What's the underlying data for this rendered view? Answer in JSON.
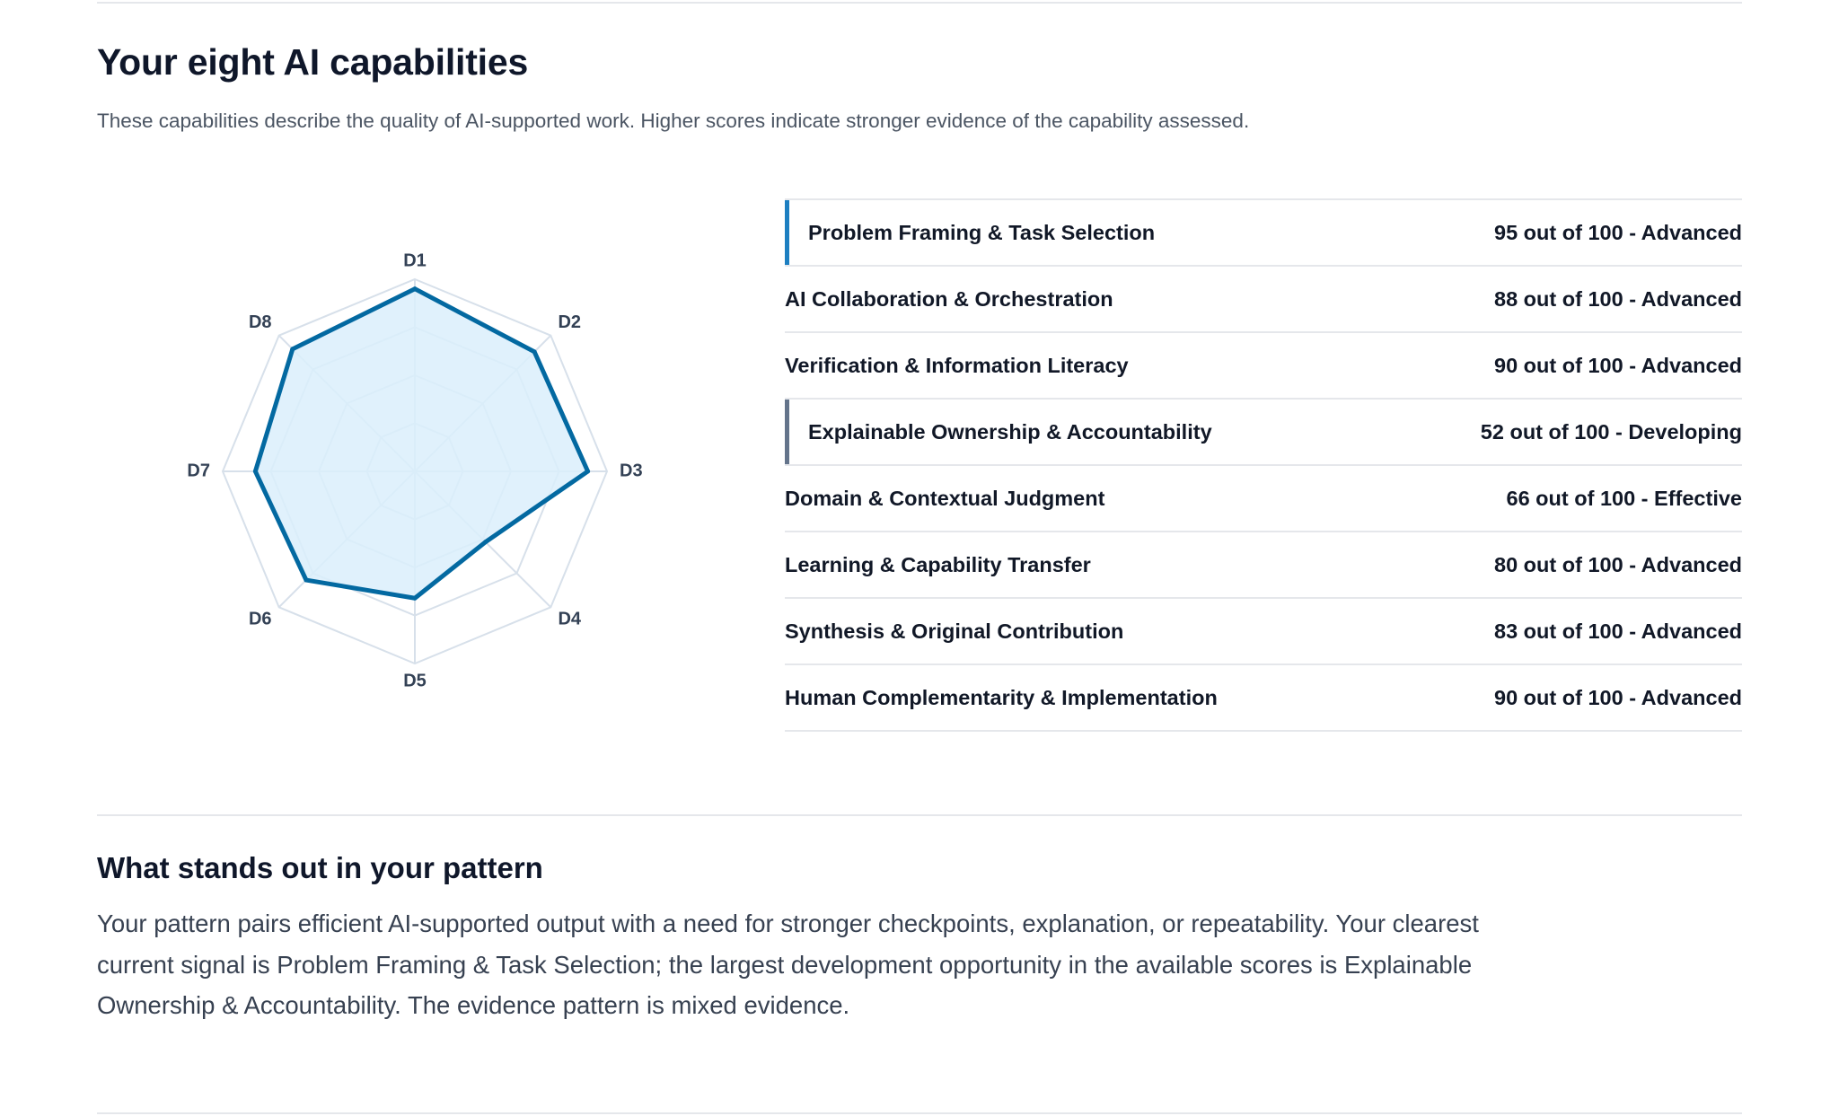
{
  "capabilities_section": {
    "title": "Your eight AI capabilities",
    "description": "These capabilities describe the quality of AI-supported work. Higher scores indicate stronger evidence of the capability assessed."
  },
  "chart_data": {
    "type": "radar",
    "axes": [
      "D1",
      "D2",
      "D3",
      "D4",
      "D5",
      "D6",
      "D7",
      "D8"
    ],
    "values": [
      95,
      88,
      90,
      52,
      66,
      80,
      83,
      90
    ],
    "range": [
      0,
      100
    ],
    "rings": 4,
    "colors": {
      "stroke": "#0369a1",
      "fill": "#dbeefb",
      "grid": "#d7e0ea"
    }
  },
  "score_table": {
    "rows": [
      {
        "label": "Problem Framing & Task Selection",
        "value": "95 out of 100 - Advanced",
        "accent": "#1d7fc1"
      },
      {
        "label": "AI Collaboration & Orchestration",
        "value": "88 out of 100 - Advanced",
        "accent": ""
      },
      {
        "label": "Verification & Information Literacy",
        "value": "90 out of 100 - Advanced",
        "accent": ""
      },
      {
        "label": "Explainable Ownership & Accountability",
        "value": "52 out of 100 - Developing",
        "accent": "#64748b"
      },
      {
        "label": "Domain & Contextual Judgment",
        "value": "66 out of 100 - Effective",
        "accent": ""
      },
      {
        "label": "Learning & Capability Transfer",
        "value": "80 out of 100 - Advanced",
        "accent": ""
      },
      {
        "label": "Synthesis & Original Contribution",
        "value": "83 out of 100 - Advanced",
        "accent": ""
      },
      {
        "label": "Human Complementarity & Implementation",
        "value": "90 out of 100 - Advanced",
        "accent": ""
      }
    ]
  },
  "pattern_section": {
    "title": "What stands out in your pattern",
    "text": "Your pattern pairs efficient AI-supported output with a need for stronger checkpoints, explanation, or repeatability. Your clearest current signal is Problem Framing & Task Selection; the largest development opportunity in the available scores is Explainable Ownership & Accountability. The evidence pattern is mixed evidence."
  }
}
